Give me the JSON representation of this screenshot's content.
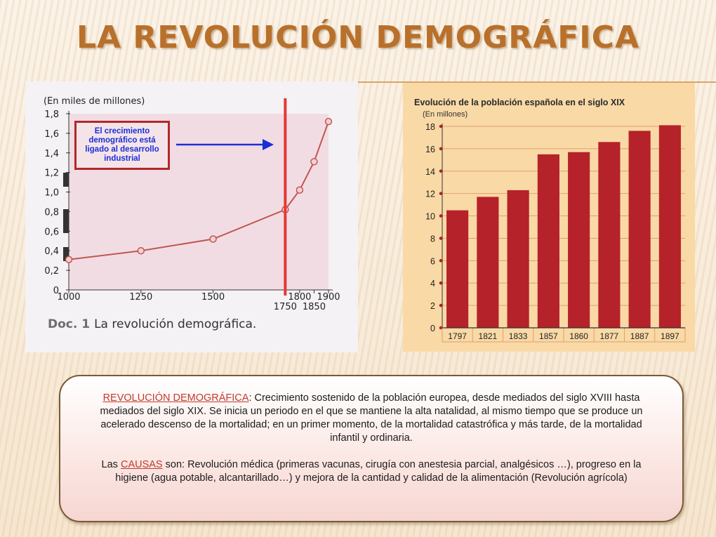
{
  "slide": {
    "title": "LA REVOLUCIÓN DEMOGRÁFICA"
  },
  "left_chart": {
    "callout_text": "El crecimiento demográfico está ligado al desarrollo industrial",
    "caption_label": "Doc. 1",
    "caption_text": "La revolución demográfica."
  },
  "chart_data": [
    {
      "type": "line",
      "title": "",
      "ylabel": "(En miles de millones)",
      "xlabel": "",
      "x": [
        1000,
        1250,
        1500,
        1750,
        1800,
        1850,
        1900
      ],
      "values": [
        0.31,
        0.4,
        0.52,
        0.82,
        1.02,
        1.31,
        1.72
      ],
      "x_ticks": [
        "1000",
        "1250",
        "1500",
        "1750",
        "1800",
        "1850",
        "1900"
      ],
      "y_ticks": [
        "0",
        "0,2",
        "0,4",
        "0,6",
        "0,8",
        "1,0",
        "1,2",
        "1,4",
        "1,6",
        "1,8"
      ],
      "ylim": [
        0,
        1.8
      ],
      "xlim": [
        1000,
        1900
      ],
      "marker_line_x": 1750,
      "colors": {
        "line": "#c0574f",
        "marker_line": "#e53935",
        "arrow": "#1a2fd8",
        "plot_bg": "#f2dce4"
      }
    },
    {
      "type": "bar",
      "title": "Evolución de la población española en el siglo XIX",
      "ylabel": "(En millones)",
      "xlabel": "",
      "categories": [
        "1797",
        "1821",
        "1833",
        "1857",
        "1860",
        "1877",
        "1887",
        "1897"
      ],
      "values": [
        10.5,
        11.7,
        12.3,
        15.5,
        15.7,
        16.6,
        17.6,
        18.1
      ],
      "y_ticks": [
        "0",
        "2",
        "4",
        "6",
        "8",
        "10",
        "12",
        "14",
        "16",
        "18"
      ],
      "ylim": [
        0,
        18
      ],
      "grid": true,
      "colors": {
        "bar": "#b5222a",
        "grid": "#e0a070",
        "bg": "#f9d9a6"
      }
    }
  ],
  "text_box": {
    "p1_term": "REVOLUCIÓN DEMOGRÁFICA",
    "p1_text": ": Crecimiento sostenido de la población europea, desde mediados del siglo XVIII hasta mediados del siglo XIX. Se inicia un periodo en el que se mantiene la alta natalidad, al mismo tiempo que se produce un acelerado descenso de la mortalidad; en un primer momento, de la mortalidad catastrófica y más tarde, de la mortalidad infantil y ordinaria.",
    "p2_pre": "Las ",
    "p2_term": "CAUSAS",
    "p2_text": " son: Revolución médica (primeras vacunas, cirugía con anestesia parcial, analgésicos …), progreso en la higiene (agua potable, alcantarillado…) y mejora de la cantidad y calidad de la alimentación (Revolución agrícola)"
  }
}
